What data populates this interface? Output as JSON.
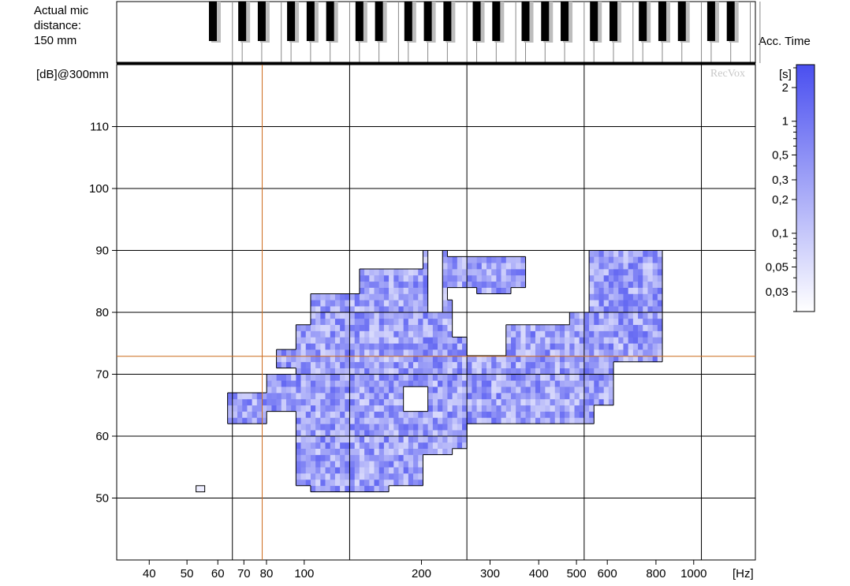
{
  "header": {
    "mic_label_line1": "Actual mic",
    "mic_label_line2": "distance:",
    "mic_label_line3": "150 mm",
    "acc_time_label": "Acc. Time",
    "watermark": "RecVox"
  },
  "chart_data": {
    "type": "heatmap",
    "title": "",
    "xlabel": "[Hz]",
    "ylabel": "[dB]@300mm",
    "x_scale": "log",
    "xlim": [
      33,
      1440
    ],
    "ylim": [
      40,
      120
    ],
    "x_ticks": [
      {
        "value": 40,
        "label": "40"
      },
      {
        "value": 50,
        "label": "50"
      },
      {
        "value": 60,
        "label": "60"
      },
      {
        "value": 70,
        "label": "70"
      },
      {
        "value": 80,
        "label": "80"
      },
      {
        "value": 100,
        "label": "100"
      },
      {
        "value": 200,
        "label": "200"
      },
      {
        "value": 300,
        "label": "300"
      },
      {
        "value": 400,
        "label": "400"
      },
      {
        "value": 500,
        "label": "500"
      },
      {
        "value": 600,
        "label": "600"
      },
      {
        "value": 800,
        "label": "800"
      },
      {
        "value": 1000,
        "label": "1000"
      }
    ],
    "y_ticks": [
      {
        "value": 50,
        "label": "50"
      },
      {
        "value": 60,
        "label": "60"
      },
      {
        "value": 70,
        "label": "70"
      },
      {
        "value": 80,
        "label": "80"
      },
      {
        "value": 90,
        "label": "90"
      },
      {
        "value": 100,
        "label": "100"
      },
      {
        "value": 110,
        "label": "110"
      }
    ],
    "x_gridlines_hz": [
      65.4,
      130.8,
      261.6,
      523.3,
      1046.5
    ],
    "y_gridlines_db": [
      50,
      60,
      70,
      80,
      90,
      100,
      110
    ],
    "cursor": {
      "x_hz": 78,
      "y_db": 72.9,
      "color": "#cc6a1a"
    },
    "colorbar": {
      "label": "[s]",
      "ticks": [
        "2",
        "1",
        "0,5",
        "0,3",
        "0,2",
        "0,1",
        "0,05",
        "0,03"
      ],
      "tick_values": [
        2,
        1,
        0.5,
        0.3,
        0.2,
        0.1,
        0.05,
        0.03
      ],
      "color_low": "#ffffff",
      "color_high": "#4a4ff0"
    },
    "cell_db_step": 1,
    "regions": [
      {
        "f_min": 64,
        "f_max": 80,
        "db_min": 62,
        "db_max": 67
      },
      {
        "f_min": 80,
        "f_max": 95,
        "db_min": 64,
        "db_max": 70
      },
      {
        "f_min": 85,
        "f_max": 98,
        "db_min": 71,
        "db_max": 74
      },
      {
        "f_min": 95,
        "f_max": 125,
        "db_min": 52,
        "db_max": 78
      },
      {
        "f_min": 105,
        "f_max": 165,
        "db_min": 51,
        "db_max": 83
      },
      {
        "f_min": 140,
        "f_max": 200,
        "db_min": 52,
        "db_max": 87
      },
      {
        "f_min": 160,
        "f_max": 240,
        "db_min": 57,
        "db_max": 82
      },
      {
        "f_min": 200,
        "f_max": 260,
        "db_min": 58,
        "db_max": 76
      },
      {
        "f_min": 200,
        "f_max": 235,
        "db_min": 82,
        "db_max": 90
      },
      {
        "f_min": 235,
        "f_max": 370,
        "db_min": 84,
        "db_max": 89
      },
      {
        "f_min": 280,
        "f_max": 335,
        "db_min": 83,
        "db_max": 86
      },
      {
        "f_min": 260,
        "f_max": 560,
        "db_min": 62,
        "db_max": 73
      },
      {
        "f_min": 330,
        "f_max": 480,
        "db_min": 66,
        "db_max": 78
      },
      {
        "f_min": 480,
        "f_max": 620,
        "db_min": 65,
        "db_max": 80
      },
      {
        "f_min": 540,
        "f_max": 830,
        "db_min": 72,
        "db_max": 90
      },
      {
        "f_min": 640,
        "f_max": 800,
        "db_min": 86,
        "db_max": 90
      }
    ],
    "holes": [
      {
        "f_min": 180,
        "f_max": 205,
        "db_min": 64,
        "db_max": 68
      },
      {
        "f_min": 205,
        "f_max": 225,
        "db_min": 80,
        "db_max": 90
      }
    ],
    "isolated_cell": {
      "f_hz": 54,
      "db": 51
    }
  }
}
